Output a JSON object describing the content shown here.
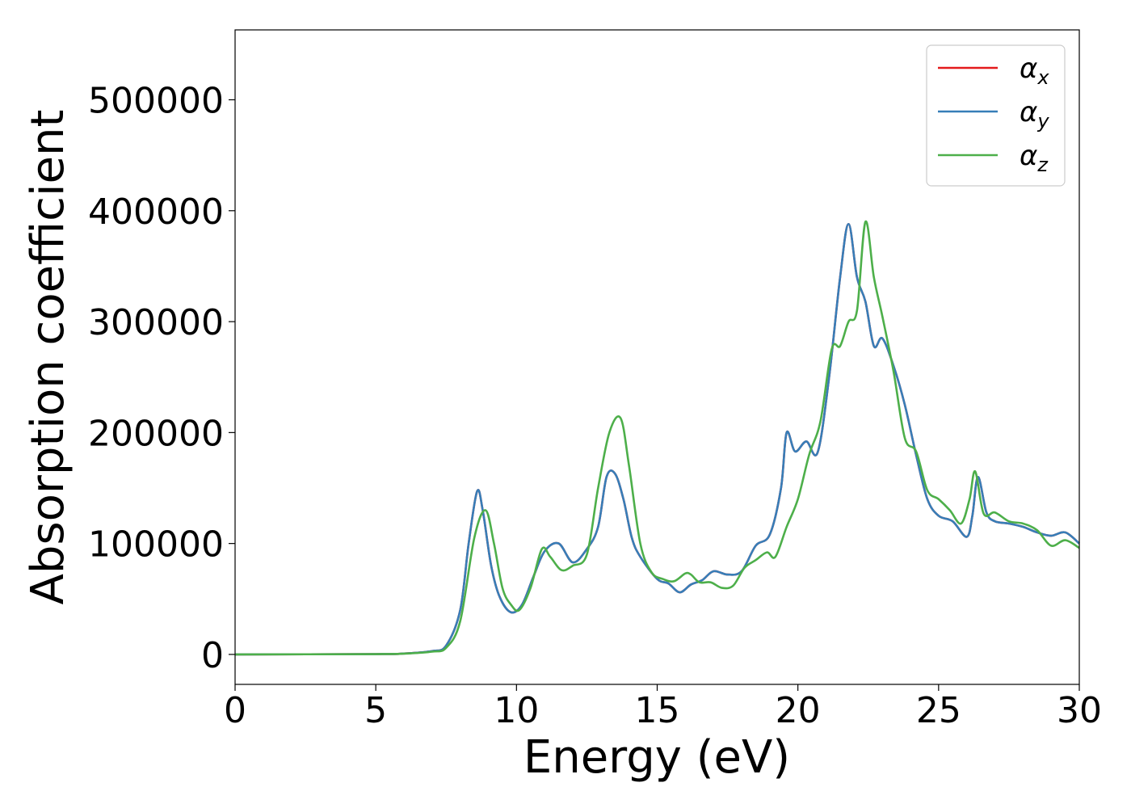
{
  "chart_data": {
    "type": "line",
    "title": "",
    "xlabel": "Energy (eV)",
    "ylabel": "Absorption coefficient",
    "xlim": [
      0,
      30
    ],
    "ylim": [
      -27000,
      563000
    ],
    "x_ticks": [
      0,
      5,
      10,
      15,
      20,
      25,
      30
    ],
    "y_ticks": [
      0,
      100000,
      200000,
      300000,
      400000,
      500000
    ],
    "grid": false,
    "legend_position": "top-right",
    "series": [
      {
        "name": "α",
        "subscript": "x",
        "color": "#e41a1c",
        "x": [
          0,
          5,
          6,
          7,
          7.5,
          8,
          8.3,
          8.6,
          8.8,
          9.1,
          9.4,
          9.8,
          10.2,
          10.6,
          11,
          11.5,
          12,
          12.5,
          12.9,
          13.2,
          13.5,
          13.8,
          14.1,
          14.4,
          15,
          15.4,
          15.8,
          16.2,
          16.6,
          17,
          17.5,
          18,
          18.5,
          19,
          19.4,
          19.6,
          19.9,
          20.3,
          20.7,
          21.1,
          21.5,
          21.8,
          22.1,
          22.4,
          22.7,
          23,
          23.4,
          23.8,
          24.2,
          24.6,
          25,
          25.5,
          26,
          26.2,
          26.4,
          26.7,
          27,
          27.5,
          28,
          28.5,
          29,
          29.5,
          30
        ],
        "y": [
          0,
          300,
          800,
          3000,
          8000,
          40000,
          100000,
          147000,
          130000,
          80000,
          52000,
          38000,
          45000,
          70000,
          93000,
          100000,
          83000,
          95000,
          115000,
          160000,
          163000,
          140000,
          105000,
          88000,
          68000,
          64000,
          56000,
          63000,
          67000,
          75000,
          72000,
          75000,
          98000,
          108000,
          150000,
          200000,
          183000,
          192000,
          182000,
          248000,
          340000,
          388000,
          340000,
          318000,
          278000,
          285000,
          260000,
          225000,
          180000,
          140000,
          125000,
          120000,
          106000,
          125000,
          160000,
          128000,
          120000,
          118000,
          115000,
          110000,
          107000,
          110000,
          100000
        ]
      },
      {
        "name": "α",
        "subscript": "y",
        "color": "#377eb8",
        "x": [
          0,
          5,
          6,
          7,
          7.5,
          8,
          8.3,
          8.6,
          8.8,
          9.1,
          9.4,
          9.8,
          10.2,
          10.6,
          11,
          11.5,
          12,
          12.5,
          12.9,
          13.2,
          13.5,
          13.8,
          14.1,
          14.4,
          15,
          15.4,
          15.8,
          16.2,
          16.6,
          17,
          17.5,
          18,
          18.5,
          19,
          19.4,
          19.6,
          19.9,
          20.3,
          20.7,
          21.1,
          21.5,
          21.8,
          22.1,
          22.4,
          22.7,
          23,
          23.4,
          23.8,
          24.2,
          24.6,
          25,
          25.5,
          26,
          26.2,
          26.4,
          26.7,
          27,
          27.5,
          28,
          28.5,
          29,
          29.5,
          30
        ],
        "y": [
          0,
          300,
          800,
          3000,
          8000,
          40000,
          100000,
          147000,
          130000,
          80000,
          52000,
          38000,
          45000,
          70000,
          93000,
          100000,
          83000,
          95000,
          115000,
          160000,
          163000,
          140000,
          105000,
          88000,
          68000,
          64000,
          56000,
          63000,
          67000,
          75000,
          72000,
          75000,
          98000,
          108000,
          150000,
          200000,
          183000,
          192000,
          182000,
          248000,
          340000,
          388000,
          340000,
          318000,
          278000,
          285000,
          260000,
          225000,
          180000,
          140000,
          125000,
          120000,
          106000,
          125000,
          160000,
          128000,
          120000,
          118000,
          115000,
          110000,
          107000,
          110000,
          100000
        ]
      },
      {
        "name": "α",
        "subscript": "z",
        "color": "#4daf4a",
        "x": [
          0,
          5,
          6,
          7,
          7.5,
          8,
          8.5,
          8.9,
          9.2,
          9.5,
          9.8,
          10.1,
          10.5,
          10.9,
          11.2,
          11.6,
          12,
          12.5,
          12.9,
          13.3,
          13.7,
          14,
          14.4,
          14.8,
          15.2,
          15.6,
          16,
          16.2,
          16.5,
          16.9,
          17.3,
          17.7,
          18.1,
          18.5,
          18.9,
          19.2,
          19.6,
          20,
          20.4,
          20.8,
          21.2,
          21.5,
          21.8,
          22.1,
          22.4,
          22.7,
          23,
          23.4,
          23.8,
          24.2,
          24.6,
          25,
          25.4,
          25.8,
          26.1,
          26.3,
          26.6,
          27,
          27.5,
          28,
          28.5,
          29,
          29.5,
          30
        ],
        "y": [
          0,
          300,
          700,
          2500,
          6000,
          30000,
          105000,
          130000,
          100000,
          60000,
          45000,
          40000,
          60000,
          95000,
          88000,
          76000,
          80000,
          90000,
          150000,
          200000,
          213000,
          170000,
          100000,
          74000,
          68000,
          66000,
          73000,
          72000,
          65000,
          65000,
          60000,
          62000,
          78000,
          85000,
          92000,
          88000,
          115000,
          140000,
          180000,
          210000,
          275000,
          278000,
          300000,
          310000,
          390000,
          340000,
          305000,
          255000,
          195000,
          183000,
          148000,
          140000,
          130000,
          118000,
          140000,
          165000,
          127000,
          128000,
          120000,
          118000,
          112000,
          98000,
          103000,
          96000
        ]
      }
    ]
  }
}
